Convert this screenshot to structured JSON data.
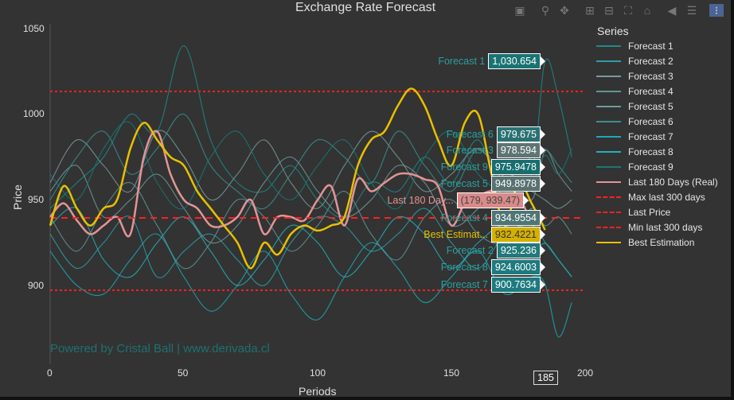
{
  "chart_data": {
    "type": "line",
    "title": "Exchange Rate Forecast",
    "xlabel": "Periods",
    "ylabel": "Price",
    "xlim": [
      0,
      200
    ],
    "ylim": [
      852,
      1053
    ],
    "xticks": [
      0,
      50,
      100,
      150,
      200
    ],
    "yticks": [
      900,
      950,
      1000,
      1050
    ],
    "grid": false,
    "legend_title": "Series",
    "legend_placement": "right",
    "watermark": "Powered by Cristal Ball | www.derivada.cl",
    "hover_x": "185",
    "forecast_x": [
      0,
      10,
      20,
      30,
      40,
      50,
      60,
      70,
      80,
      90,
      100,
      110,
      120,
      130,
      140,
      150,
      160,
      170,
      180,
      185,
      190,
      195
    ],
    "series": [
      {
        "name": "Forecast 1",
        "color": "#1f8a8a",
        "hover": "1,030.654",
        "hover_bg": "#1a7373",
        "values": [
          945,
          960,
          975,
          1000,
          990,
          1040,
          985,
          960,
          955,
          970,
          950,
          940,
          960,
          955,
          975,
          960,
          985,
          950,
          965,
          1030.654,
          1010,
          975
        ]
      },
      {
        "name": "Forecast 2",
        "color": "#2aa0a8",
        "hover": "925.236",
        "hover_bg": "#22787a",
        "values": [
          930,
          910,
          925,
          940,
          905,
          920,
          930,
          915,
          900,
          925,
          940,
          935,
          920,
          930,
          945,
          925,
          910,
          930,
          935,
          925.236,
          915,
          905
        ]
      },
      {
        "name": "Forecast 3",
        "color": "#7a9a9a",
        "hover": "978.594",
        "hover_bg": "#5f7474",
        "values": [
          960,
          985,
          970,
          955,
          990,
          975,
          950,
          965,
          985,
          960,
          945,
          970,
          990,
          975,
          955,
          965,
          980,
          960,
          950,
          978.594,
          965,
          955
        ]
      },
      {
        "name": "Forecast 4",
        "color": "#5e9696",
        "hover": "934.9554",
        "hover_bg": "#507575",
        "values": [
          940,
          920,
          945,
          960,
          935,
          910,
          925,
          950,
          940,
          920,
          935,
          955,
          930,
          915,
          940,
          950,
          930,
          925,
          945,
          934.9554,
          940,
          930
        ]
      },
      {
        "name": "Forecast 5",
        "color": "#6e9c9c",
        "hover": "949.8978",
        "hover_bg": "#587272",
        "values": [
          955,
          970,
          940,
          950,
          965,
          945,
          925,
          935,
          960,
          975,
          955,
          940,
          950,
          970,
          960,
          935,
          945,
          965,
          955,
          949.8978,
          945,
          950
        ]
      },
      {
        "name": "Forecast 6",
        "color": "#3a9090",
        "hover": "979.675",
        "hover_bg": "#2a7272",
        "values": [
          950,
          975,
          990,
          965,
          980,
          1000,
          970,
          955,
          945,
          965,
          985,
          975,
          960,
          990,
          970,
          955,
          980,
          965,
          975,
          979.675,
          970,
          960
        ]
      },
      {
        "name": "Forecast 7",
        "color": "#1ea8b4",
        "hover": "900.7634",
        "hover_bg": "#1d7a7e",
        "values": [
          920,
          900,
          895,
          915,
          930,
          905,
          885,
          900,
          920,
          895,
          880,
          905,
          925,
          910,
          890,
          905,
          920,
          895,
          905,
          900.7634,
          870,
          890
        ]
      },
      {
        "name": "Forecast 8",
        "color": "#24b0bc",
        "hover": "924.6003",
        "hover_bg": "#1e7a7e",
        "values": [
          935,
          945,
          915,
          905,
          925,
          940,
          920,
          900,
          915,
          935,
          925,
          905,
          920,
          940,
          930,
          910,
          925,
          935,
          920,
          924.6003,
          915,
          905
        ]
      },
      {
        "name": "Forecast 9",
        "color": "#187878",
        "hover": "975.9478",
        "hover_bg": "#186e6e",
        "values": [
          965,
          950,
          980,
          995,
          960,
          945,
          975,
          990,
          965,
          950,
          970,
          985,
          960,
          945,
          975,
          990,
          965,
          955,
          960,
          975.9478,
          965,
          980
        ]
      },
      {
        "name": "Last 180 Days (Real)",
        "short": "Last 180 Day...",
        "color": "#e39494",
        "hover": "(179, 939.47)",
        "hover_bg": "#d98a8a",
        "x": [
          0,
          5,
          10,
          15,
          20,
          25,
          30,
          35,
          40,
          45,
          50,
          55,
          60,
          65,
          70,
          75,
          80,
          85,
          90,
          95,
          100,
          105,
          110,
          115,
          120,
          125,
          130,
          135,
          140,
          145,
          150,
          155,
          160,
          165,
          170,
          175,
          179
        ],
        "values": [
          940,
          948,
          938,
          930,
          935,
          940,
          930,
          975,
          990,
          965,
          950,
          945,
          935,
          935,
          940,
          950,
          930,
          940,
          940,
          938,
          950,
          958,
          935,
          962,
          955,
          960,
          965,
          965,
          962,
          958,
          935,
          948,
          952,
          955,
          950,
          952,
          939.47
        ]
      },
      {
        "name": "Max last 300 days",
        "color": "#ff2020",
        "value": 1013.3
      },
      {
        "name": "Last Price",
        "color": "#ff2020",
        "value": 939.47
      },
      {
        "name": "Min last 300 days",
        "color": "#ff2020",
        "value": 897.2
      },
      {
        "name": "Best Estimation",
        "short": "Best Estimat...",
        "color": "#e8c000",
        "hover": "932.4221",
        "hover_bg": "#d4b000",
        "x": [
          0,
          5,
          10,
          15,
          20,
          25,
          30,
          35,
          40,
          45,
          50,
          55,
          60,
          65,
          70,
          75,
          80,
          85,
          90,
          95,
          100,
          105,
          110,
          115,
          120,
          125,
          130,
          135,
          140,
          145,
          150,
          155,
          160,
          165,
          170,
          175,
          180,
          185
        ],
        "values": [
          935,
          958,
          945,
          935,
          945,
          950,
          980,
          995,
          985,
          975,
          970,
          955,
          945,
          935,
          925,
          910,
          925,
          918,
          930,
          935,
          932,
          935,
          940,
          970,
          985,
          990,
          1005,
          1015,
          1005,
          985,
          970,
          995,
          1000,
          965,
          935,
          960,
          948,
          932.4221
        ]
      }
    ]
  },
  "toolbar": [
    "camera-icon",
    "zoom-icon",
    "pan-icon",
    "zoom-in-icon",
    "zoom-out-icon",
    "autoscale-icon",
    "reset-axes-icon",
    "hover-closest-icon",
    "hover-compare-icon",
    "plotly-logo-icon"
  ]
}
